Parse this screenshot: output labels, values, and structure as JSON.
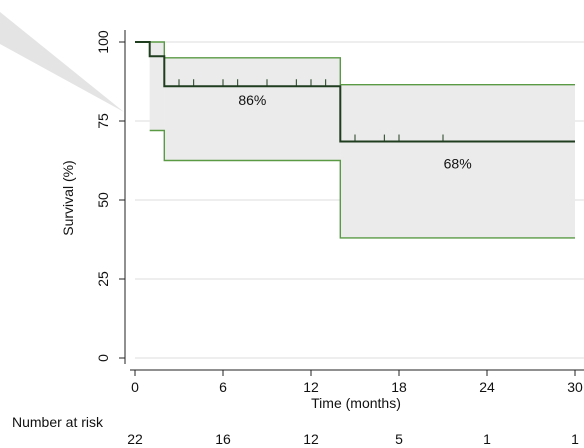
{
  "chart_data": {
    "type": "line",
    "subtype": "kaplan-meier",
    "title": "",
    "xlabel": "Time (months)",
    "ylabel": "Survival (%)",
    "xlim": [
      0,
      30
    ],
    "ylim": [
      0,
      100
    ],
    "xticks": [
      "0",
      "6",
      "12",
      "18",
      "24",
      "30"
    ],
    "yticks": [
      "0",
      "25",
      "50",
      "75",
      "100"
    ],
    "grid": true,
    "legend": "none",
    "colors": {
      "survival_line": "#1f3d1f",
      "ci_line": "#5a9a45",
      "ci_fill": "#ebebeb",
      "grid": "#dddddd"
    },
    "survival": {
      "x": [
        0,
        1,
        1,
        2,
        2,
        14,
        14,
        30
      ],
      "y": [
        100,
        100,
        95.5,
        95.5,
        86,
        86,
        68.5,
        68.5
      ]
    },
    "ci_upper": {
      "x": [
        0,
        2,
        2,
        14,
        14,
        30
      ],
      "y": [
        100,
        100,
        95,
        95,
        86.5,
        86.5
      ]
    },
    "ci_lower": {
      "x": [
        1,
        2,
        2,
        14,
        14,
        30
      ],
      "y": [
        72,
        72,
        62.5,
        62.5,
        38,
        38
      ]
    },
    "censor_marks": [
      {
        "x": 3,
        "y": 86
      },
      {
        "x": 4,
        "y": 86
      },
      {
        "x": 6,
        "y": 86
      },
      {
        "x": 7,
        "y": 86
      },
      {
        "x": 9,
        "y": 86
      },
      {
        "x": 11,
        "y": 86
      },
      {
        "x": 12,
        "y": 86
      },
      {
        "x": 13,
        "y": 86
      },
      {
        "x": 15,
        "y": 68.5
      },
      {
        "x": 17,
        "y": 68.5
      },
      {
        "x": 18,
        "y": 68.5
      },
      {
        "x": 21,
        "y": 68.5
      }
    ],
    "annotations": [
      {
        "text": "86%",
        "x": 8,
        "y": 80
      },
      {
        "text": "68%",
        "x": 22,
        "y": 60
      }
    ],
    "risk_table": {
      "label": "Number at risk",
      "x": [
        0,
        6,
        12,
        18,
        24,
        30
      ],
      "values": [
        "22",
        "16",
        "12",
        "5",
        "1",
        "1"
      ]
    }
  }
}
